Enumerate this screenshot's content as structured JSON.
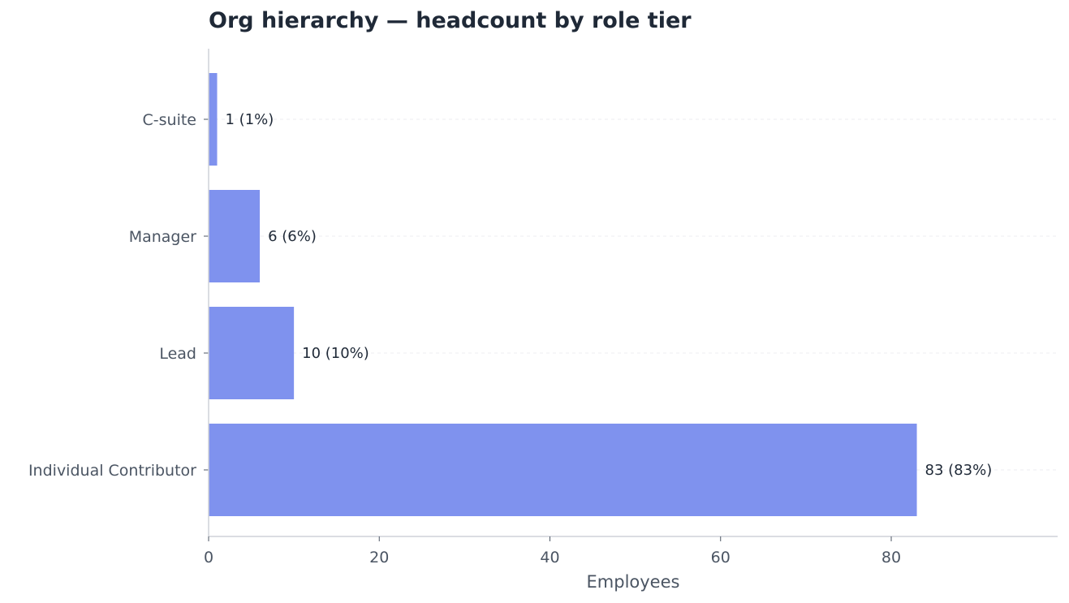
{
  "chart_data": {
    "type": "bar",
    "orientation": "horizontal",
    "title": "Org hierarchy — headcount by role tier",
    "xlabel": "Employees",
    "ylabel": "",
    "categories": [
      "C-suite",
      "Manager",
      "Lead",
      "Individual Contributor"
    ],
    "values": [
      1,
      6,
      10,
      83
    ],
    "data_labels": [
      "1 (1%)",
      "6 (6%)",
      "10 (10%)",
      "83 (83%)"
    ],
    "xlim": [
      0,
      99.5
    ],
    "xticks": [
      0,
      20,
      40,
      60,
      80
    ],
    "grid": "horizontal-dashed",
    "legend": "none",
    "colors": {
      "bar": "#7f92ee",
      "grid": "#eceef2",
      "axis": "#cfd2d8",
      "tick_text": "#4b5563",
      "label_text": "#1f2937"
    }
  }
}
